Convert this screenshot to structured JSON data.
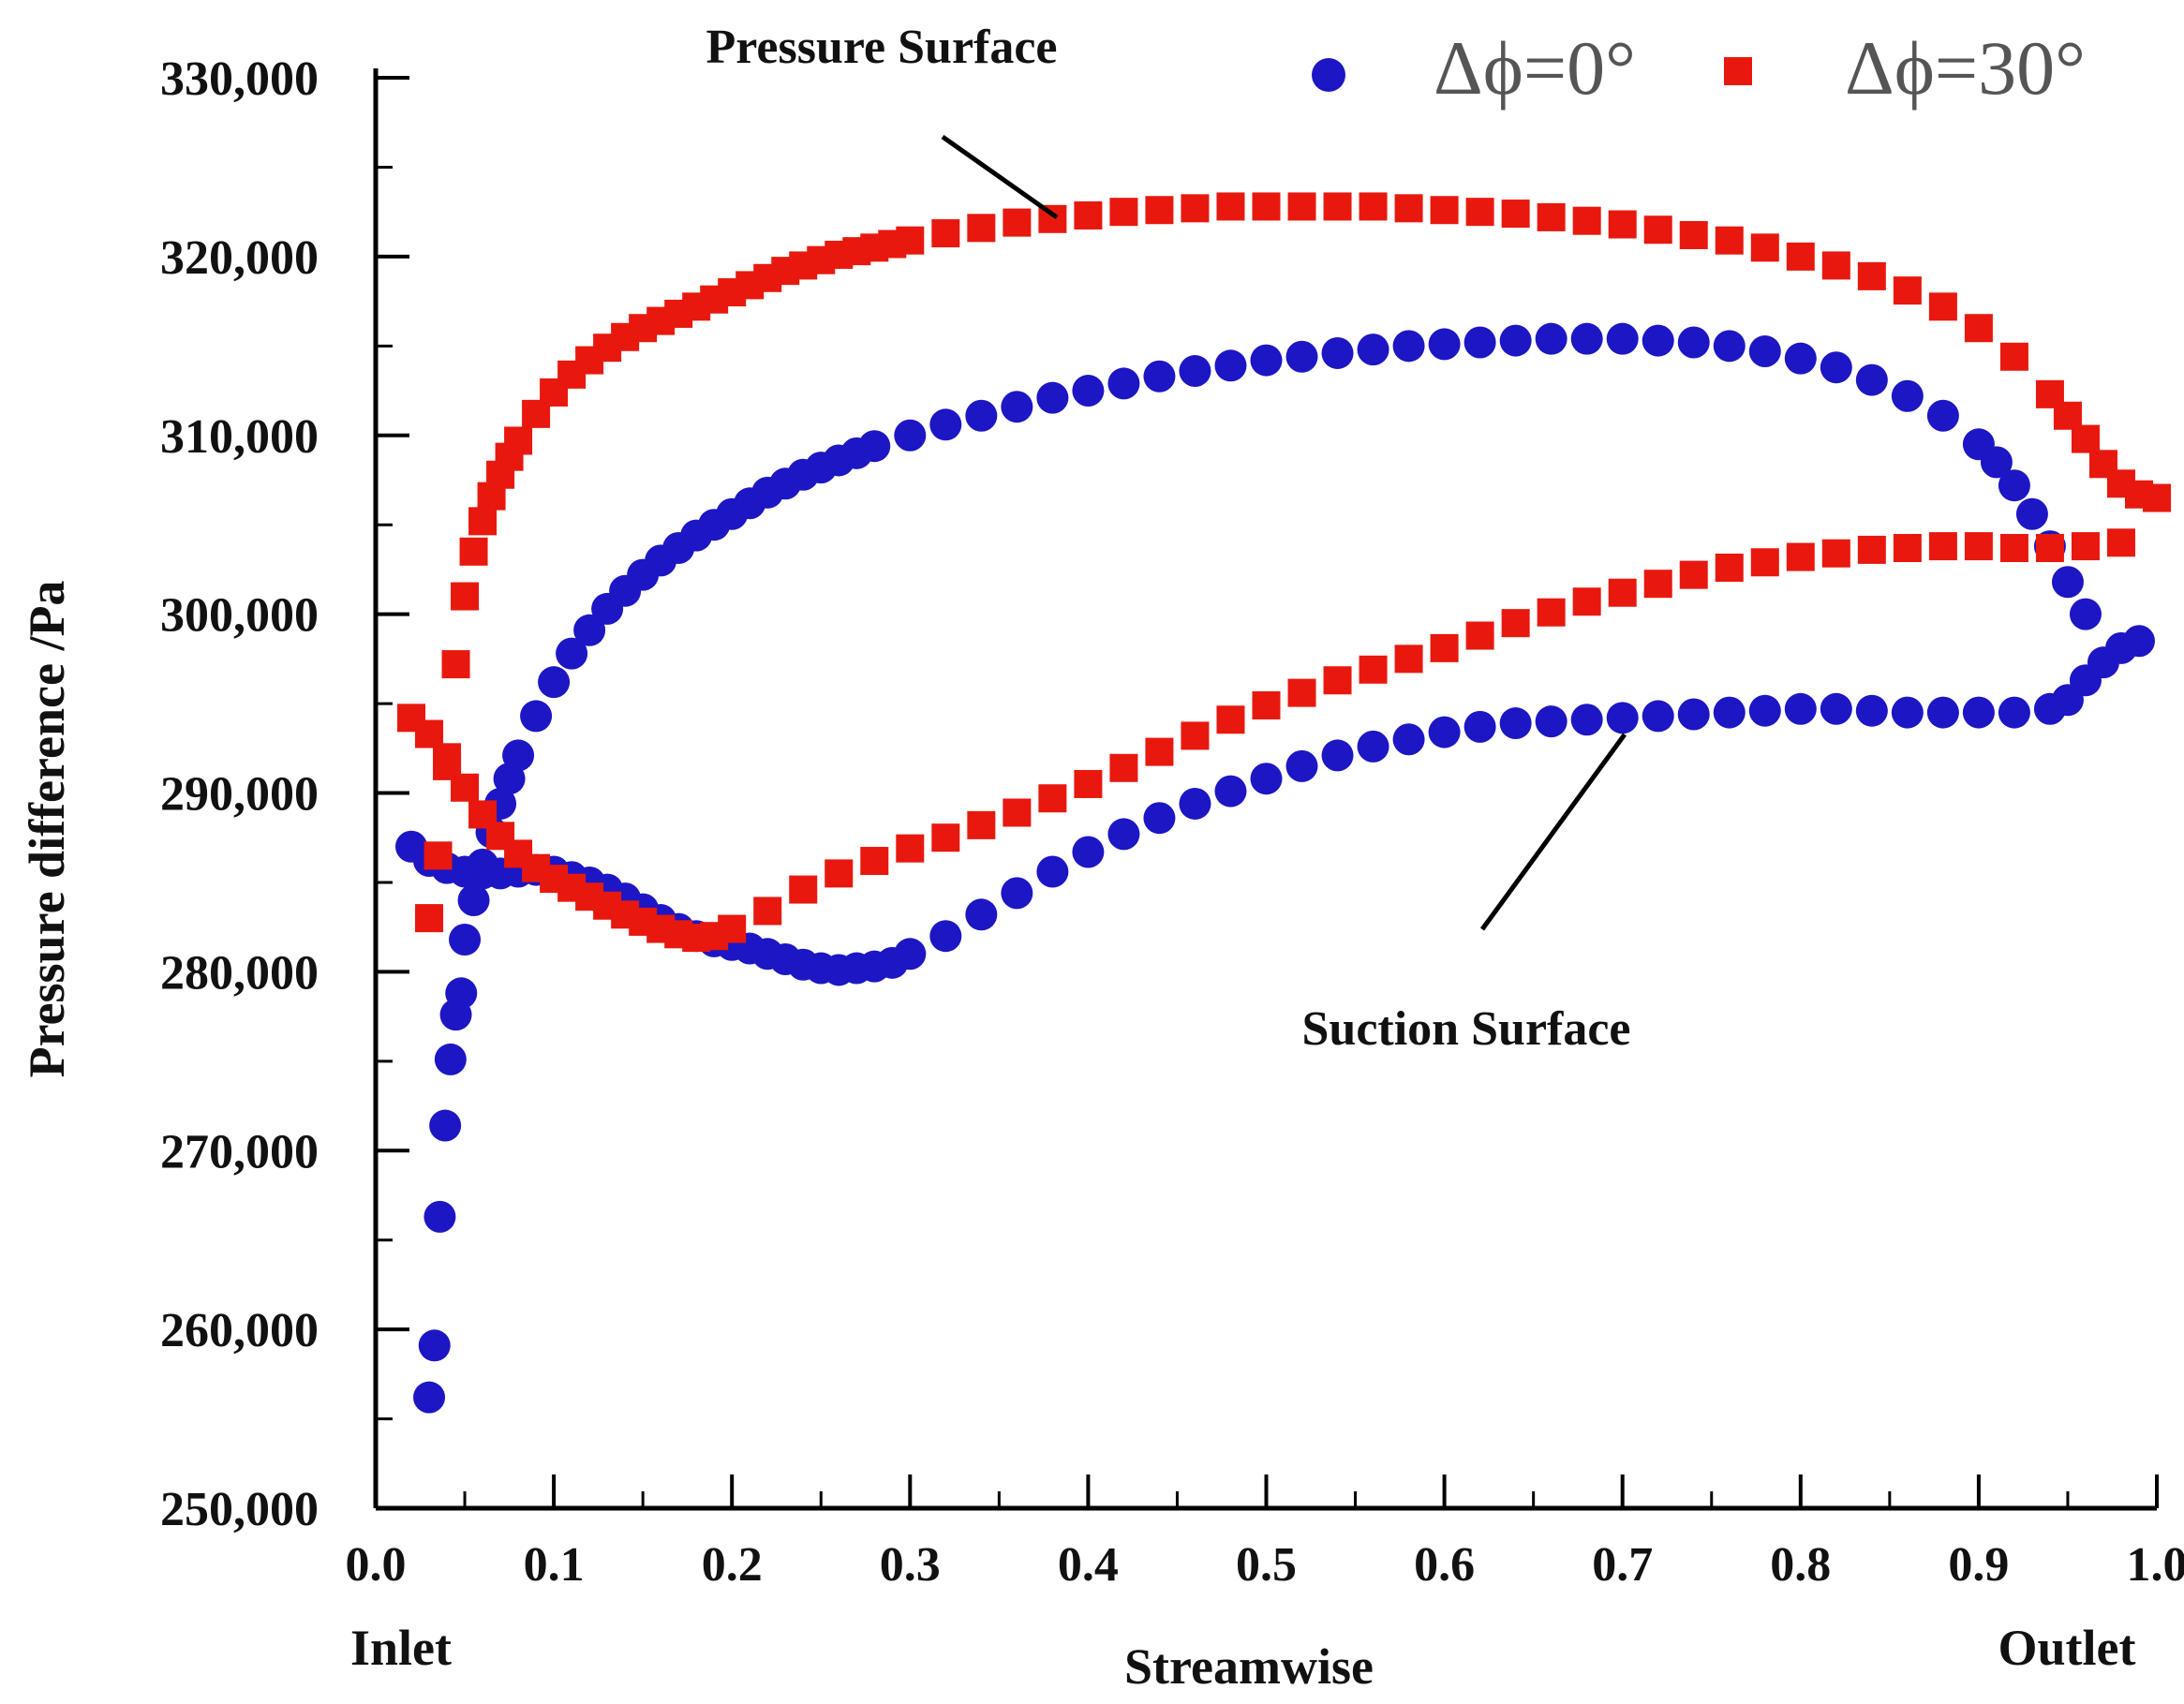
{
  "chart_data": {
    "type": "scatter",
    "title": "",
    "xlabel": "Streamwise",
    "ylabel": "Pressure difference /Pa",
    "xlim": [
      0.0,
      1.0
    ],
    "ylim": [
      250000,
      330000
    ],
    "x_ticks": [
      0.0,
      0.1,
      0.2,
      0.3,
      0.4,
      0.5,
      0.6,
      0.7,
      0.8,
      0.9,
      1.0
    ],
    "x_tick_labels": [
      "0.0",
      "0.1",
      "0.2",
      "0.3",
      "0.4",
      "0.5",
      "0.6",
      "0.7",
      "0.8",
      "0.9",
      "1.0"
    ],
    "y_ticks": [
      250000,
      260000,
      270000,
      280000,
      290000,
      300000,
      310000,
      320000,
      330000
    ],
    "y_tick_labels": [
      "250,000",
      "260,000",
      "270,000",
      "280,000",
      "290,000",
      "300,000",
      "310,000",
      "320,000",
      "330,000"
    ],
    "x_end_labels": {
      "left": "Inlet",
      "right": "Outlet"
    },
    "annotations": [
      {
        "text": "Pressure Surface",
        "points_to": [
          0.38,
          322000
        ]
      },
      {
        "text": "Suction Surface",
        "points_to": [
          0.7,
          294000
        ]
      }
    ],
    "legend": {
      "position": "top-right"
    },
    "series": [
      {
        "name": "Δϕ=0°",
        "legend_label": "Δϕ=0°",
        "marker": "circle",
        "color": "#1c16c4",
        "curves": [
          {
            "surface": "pressure",
            "x": [
              0.03,
              0.033,
              0.036,
              0.039,
              0.042,
              0.045,
              0.048,
              0.05,
              0.055,
              0.06,
              0.065,
              0.07,
              0.075,
              0.08,
              0.09,
              0.1,
              0.11,
              0.12,
              0.13,
              0.14,
              0.15,
              0.16,
              0.17,
              0.18,
              0.19,
              0.2,
              0.21,
              0.22,
              0.23,
              0.24,
              0.25,
              0.26,
              0.27,
              0.28,
              0.3,
              0.32,
              0.34,
              0.36,
              0.38,
              0.4,
              0.42,
              0.44,
              0.46,
              0.48,
              0.5,
              0.52,
              0.54,
              0.56,
              0.58,
              0.6,
              0.62,
              0.64,
              0.66,
              0.68,
              0.7,
              0.72,
              0.74,
              0.76,
              0.78,
              0.8,
              0.82,
              0.84,
              0.86,
              0.88,
              0.9,
              0.91,
              0.92,
              0.93,
              0.94,
              0.95,
              0.96
            ],
            "y": [
              256200,
              259100,
              266300,
              271400,
              275100,
              277600,
              278800,
              281800,
              284000,
              286000,
              287800,
              289400,
              290800,
              292100,
              294300,
              296200,
              297800,
              299100,
              300300,
              301300,
              302200,
              303000,
              303700,
              304400,
              305000,
              305600,
              306200,
              306800,
              307300,
              307800,
              308200,
              308600,
              309000,
              309400,
              310000,
              310600,
              311100,
              311600,
              312100,
              312500,
              312900,
              313300,
              313600,
              313900,
              314200,
              314400,
              314600,
              314800,
              315000,
              315100,
              315200,
              315300,
              315400,
              315400,
              315400,
              315300,
              315200,
              315000,
              314700,
              314300,
              313800,
              313100,
              312200,
              311100,
              309500,
              308500,
              307200,
              305600,
              303800,
              301800,
              300000
            ]
          },
          {
            "surface": "suction",
            "x": [
              0.02,
              0.03,
              0.04,
              0.05,
              0.06,
              0.07,
              0.08,
              0.09,
              0.1,
              0.11,
              0.12,
              0.13,
              0.14,
              0.15,
              0.16,
              0.17,
              0.18,
              0.19,
              0.2,
              0.21,
              0.22,
              0.23,
              0.24,
              0.25,
              0.26,
              0.27,
              0.28,
              0.29,
              0.3,
              0.32,
              0.34,
              0.36,
              0.38,
              0.4,
              0.42,
              0.44,
              0.46,
              0.48,
              0.5,
              0.52,
              0.54,
              0.56,
              0.58,
              0.6,
              0.62,
              0.64,
              0.66,
              0.68,
              0.7,
              0.72,
              0.74,
              0.76,
              0.78,
              0.8,
              0.82,
              0.84,
              0.86,
              0.88,
              0.9,
              0.92,
              0.94,
              0.95,
              0.96,
              0.97,
              0.98,
              0.99
            ],
            "y": [
              287000,
              286200,
              285800,
              285600,
              285500,
              285500,
              285600,
              285700,
              285600,
              285300,
              285000,
              284600,
              284100,
              283500,
              282900,
              282400,
              282000,
              281700,
              281500,
              281300,
              281000,
              280700,
              280400,
              280200,
              280100,
              280200,
              280300,
              280500,
              281000,
              282000,
              283200,
              284400,
              285600,
              286700,
              287700,
              288600,
              289400,
              290100,
              290800,
              291500,
              292100,
              292600,
              293000,
              293400,
              293700,
              293900,
              294000,
              294100,
              294200,
              294300,
              294400,
              294500,
              294600,
              294700,
              294700,
              294600,
              294500,
              294500,
              294500,
              294500,
              294700,
              295200,
              296300,
              297300,
              298100,
              298500
            ]
          }
        ]
      },
      {
        "name": "Δϕ=30°",
        "legend_label": "Δϕ=30°",
        "marker": "square",
        "color": "#e8180e",
        "curves": [
          {
            "surface": "pressure",
            "x": [
              0.03,
              0.035,
              0.04,
              0.045,
              0.05,
              0.055,
              0.06,
              0.065,
              0.07,
              0.075,
              0.08,
              0.09,
              0.1,
              0.11,
              0.12,
              0.13,
              0.14,
              0.15,
              0.16,
              0.17,
              0.18,
              0.19,
              0.2,
              0.21,
              0.22,
              0.23,
              0.24,
              0.25,
              0.26,
              0.27,
              0.28,
              0.29,
              0.3,
              0.32,
              0.34,
              0.36,
              0.38,
              0.4,
              0.42,
              0.44,
              0.46,
              0.48,
              0.5,
              0.52,
              0.54,
              0.56,
              0.58,
              0.6,
              0.62,
              0.64,
              0.66,
              0.68,
              0.7,
              0.72,
              0.74,
              0.76,
              0.78,
              0.8,
              0.82,
              0.84,
              0.86,
              0.88,
              0.9,
              0.92,
              0.94,
              0.95,
              0.96,
              0.97,
              0.98,
              0.99,
              1.0
            ],
            "y": [
              283000,
              286500,
              291500,
              297200,
              301000,
              303500,
              305200,
              306600,
              307800,
              308800,
              309700,
              311200,
              312400,
              313400,
              314200,
              314900,
              315500,
              316000,
              316400,
              316800,
              317200,
              317600,
              318000,
              318400,
              318800,
              319200,
              319500,
              319800,
              320100,
              320300,
              320500,
              320700,
              320900,
              321300,
              321600,
              321900,
              322100,
              322300,
              322500,
              322600,
              322700,
              322800,
              322800,
              322800,
              322800,
              322800,
              322700,
              322600,
              322500,
              322400,
              322200,
              322000,
              321800,
              321500,
              321200,
              320900,
              320500,
              320000,
              319500,
              318900,
              318100,
              317200,
              316000,
              314400,
              312300,
              311100,
              309800,
              308400,
              307300,
              306700,
              306500
            ]
          },
          {
            "surface": "suction",
            "x": [
              0.02,
              0.03,
              0.04,
              0.05,
              0.06,
              0.07,
              0.08,
              0.09,
              0.1,
              0.11,
              0.12,
              0.13,
              0.14,
              0.15,
              0.16,
              0.17,
              0.18,
              0.19,
              0.2,
              0.22,
              0.24,
              0.26,
              0.28,
              0.3,
              0.32,
              0.34,
              0.36,
              0.38,
              0.4,
              0.42,
              0.44,
              0.46,
              0.48,
              0.5,
              0.52,
              0.54,
              0.56,
              0.58,
              0.6,
              0.62,
              0.64,
              0.66,
              0.68,
              0.7,
              0.72,
              0.74,
              0.76,
              0.78,
              0.8,
              0.82,
              0.84,
              0.86,
              0.88,
              0.9,
              0.92,
              0.94,
              0.96,
              0.98
            ],
            "y": [
              294200,
              293300,
              292000,
              290300,
              288800,
              287600,
              286600,
              285800,
              285200,
              284700,
              284200,
              283700,
              283200,
              282800,
              282400,
              282100,
              281900,
              282000,
              282400,
              283400,
              284600,
              285500,
              286200,
              286900,
              287500,
              288200,
              288900,
              289700,
              290500,
              291400,
              292300,
              293200,
              294100,
              294900,
              295600,
              296300,
              296900,
              297500,
              298100,
              298800,
              299500,
              300100,
              300700,
              301200,
              301700,
              302200,
              302600,
              302900,
              303200,
              303400,
              303600,
              303700,
              303800,
              303800,
              303700,
              303700,
              303800,
              304000
            ]
          }
        ]
      }
    ]
  }
}
